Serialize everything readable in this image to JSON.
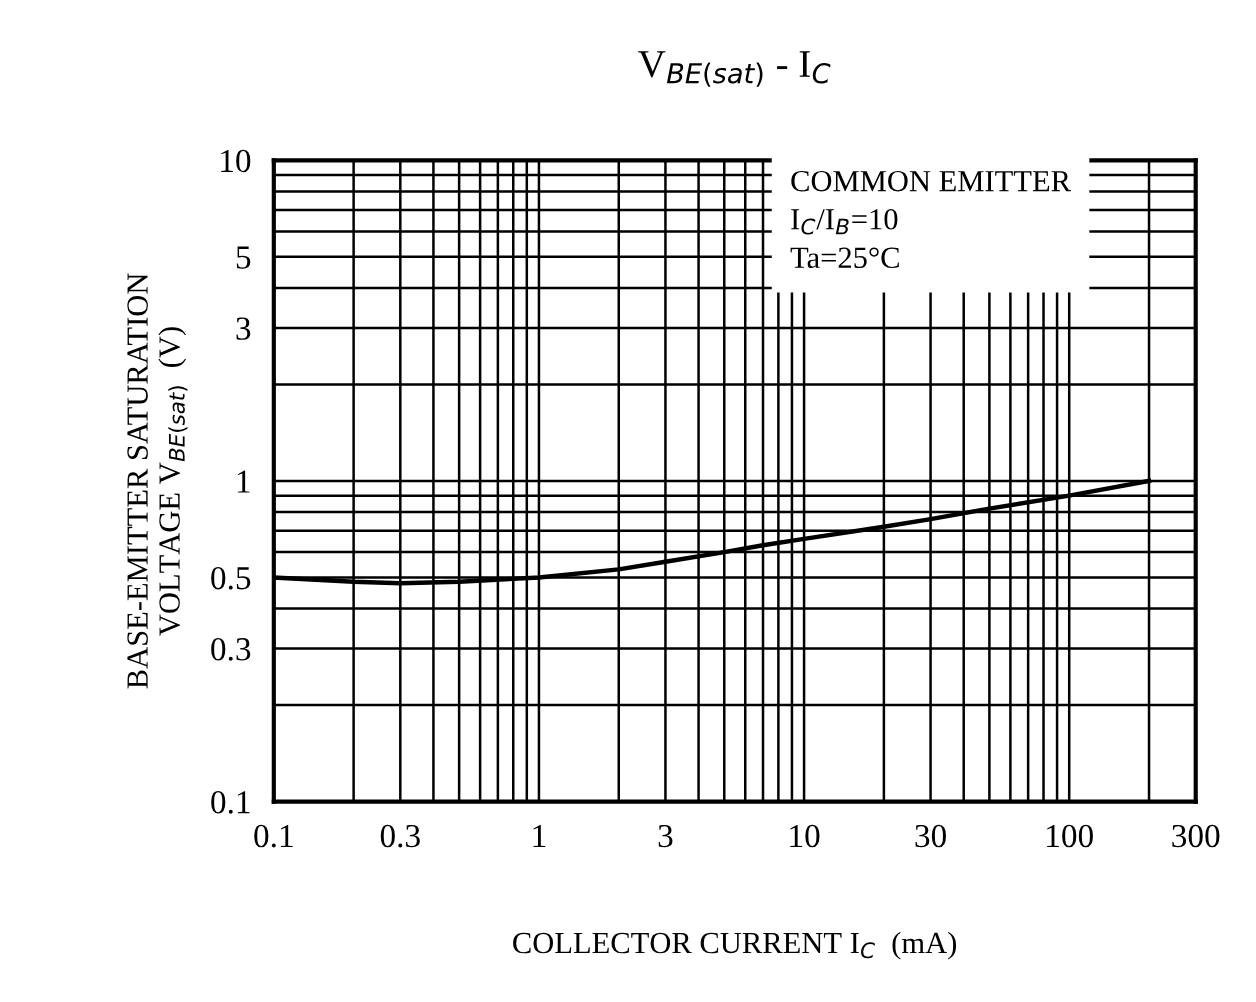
{
  "chart_data": {
    "type": "line",
    "title": "V$_{BE(sat)}$ - I$_{C}$",
    "xlabel": "COLLECTOR CURRENT I$_{C}$  (mA)",
    "ylabel": "BASE-EMITTER SATURATION\nVOLTAGE V$_{BE(sat)}$  (V)",
    "annotations": [
      "COMMON EMITTER\nI$_{C}$/I$_{B}$=10\nTa=25°C"
    ],
    "log": "xy",
    "grid": true,
    "marker": "none",
    "line_style": "solid",
    "legend": false,
    "xlim": [
      0.1,
      300
    ],
    "ylim": [
      0.1,
      10
    ],
    "xticks": [
      0.1,
      {
        "value": 0.2,
        "label": null
      },
      0.3,
      {
        "value": 0.4,
        "label": null
      },
      {
        "value": 0.5,
        "label": null
      },
      {
        "value": 0.6,
        "label": null
      },
      {
        "value": 0.7,
        "label": null
      },
      {
        "value": 0.8,
        "label": null
      },
      {
        "value": 0.9,
        "label": null
      },
      1,
      {
        "value": 2,
        "label": null
      },
      3,
      {
        "value": 4,
        "label": null
      },
      {
        "value": 5,
        "label": null
      },
      {
        "value": 6,
        "label": null
      },
      {
        "value": 7,
        "label": null
      },
      {
        "value": 8,
        "label": null
      },
      {
        "value": 9,
        "label": null
      },
      10,
      {
        "value": 20,
        "label": null
      },
      30,
      {
        "value": 40,
        "label": null
      },
      {
        "value": 50,
        "label": null
      },
      {
        "value": 60,
        "label": null
      },
      {
        "value": 70,
        "label": null
      },
      {
        "value": 80,
        "label": null
      },
      {
        "value": 90,
        "label": null
      },
      100,
      {
        "value": 200,
        "label": null
      },
      300
    ],
    "yticks": [
      0.1,
      {
        "value": 0.2,
        "label": null
      },
      0.3,
      {
        "value": 0.4,
        "label": null
      },
      0.5,
      {
        "value": 0.6,
        "label": null
      },
      {
        "value": 0.7,
        "label": null
      },
      {
        "value": 0.8,
        "label": null
      },
      {
        "value": 0.9,
        "label": null
      },
      1,
      {
        "value": 2,
        "label": null
      },
      3,
      {
        "value": 4,
        "label": null
      },
      5,
      {
        "value": 6,
        "label": null
      },
      {
        "value": 7,
        "label": null
      },
      {
        "value": 8,
        "label": null
      },
      {
        "value": 9,
        "label": null
      },
      10
    ],
    "x": [
      0.1,
      0.2,
      0.3,
      0.5,
      1,
      2,
      3,
      5,
      7,
      10,
      20,
      30,
      50,
      100,
      200
    ],
    "series": [
      {
        "color": "#000000",
        "values": [
          0.5,
          0.485,
          0.48,
          0.485,
          0.5,
          0.53,
          0.56,
          0.6,
          0.63,
          0.66,
          0.72,
          0.76,
          0.82,
          0.9,
          1.0
        ]
      }
    ]
  }
}
